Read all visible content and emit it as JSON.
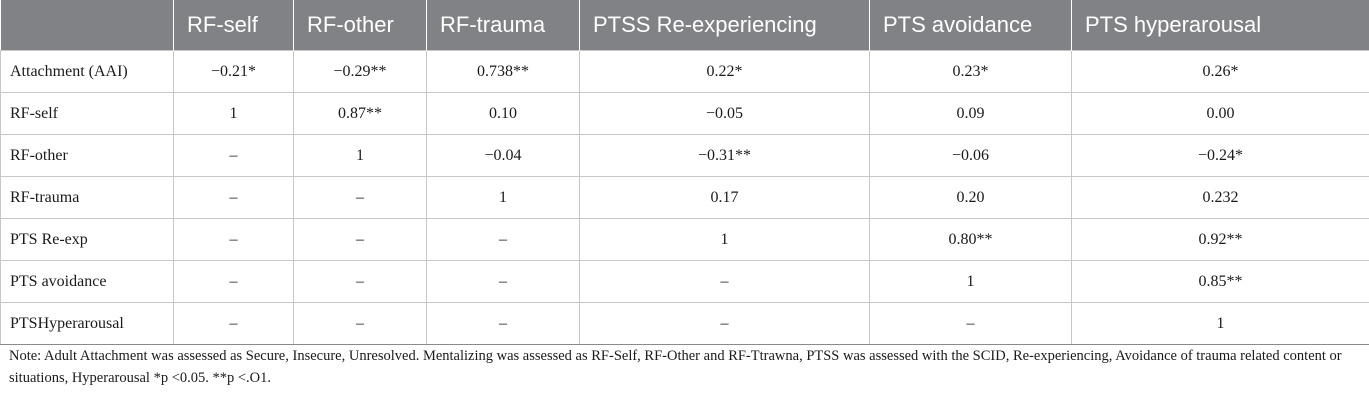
{
  "table": {
    "headers": [
      "",
      "RF-self",
      "RF-other",
      "RF-trauma",
      "PTSS Re-experiencing",
      "PTS avoidance",
      "PTS hyperarousal"
    ],
    "rows": [
      [
        "Attachment (AAI)",
        "−0.21*",
        "−0.29**",
        "0.738**",
        "0.22*",
        "0.23*",
        "0.26*"
      ],
      [
        "RF-self",
        "1",
        "0.87**",
        "0.10",
        "−0.05",
        "0.09",
        "0.00"
      ],
      [
        "RF-other",
        "–",
        "1",
        "−0.04",
        "−0.31**",
        "−0.06",
        "−0.24*"
      ],
      [
        "RF-trauma",
        "–",
        "–",
        "1",
        "0.17",
        "0.20",
        "0.232"
      ],
      [
        "PTS Re-exp",
        "–",
        "–",
        "–",
        "1",
        "0.80**",
        "0.92**"
      ],
      [
        "PTS avoidance",
        "–",
        "–",
        "–",
        "–",
        "1",
        "0.85**"
      ],
      [
        "PTSHyperarousal",
        "–",
        "–",
        "–",
        "–",
        "–",
        "1"
      ]
    ]
  },
  "note": "Note: Adult Attachment was assessed as Secure, Insecure, Unresolved. Mentalizing was assessed as RF-Self, RF-Other and RF-Ttrawna, PTSS was assessed with the SCID, Re-experiencing, Avoidance of trauma related content or situations, Hyperarousal *p <0.05. **p <.O1."
}
